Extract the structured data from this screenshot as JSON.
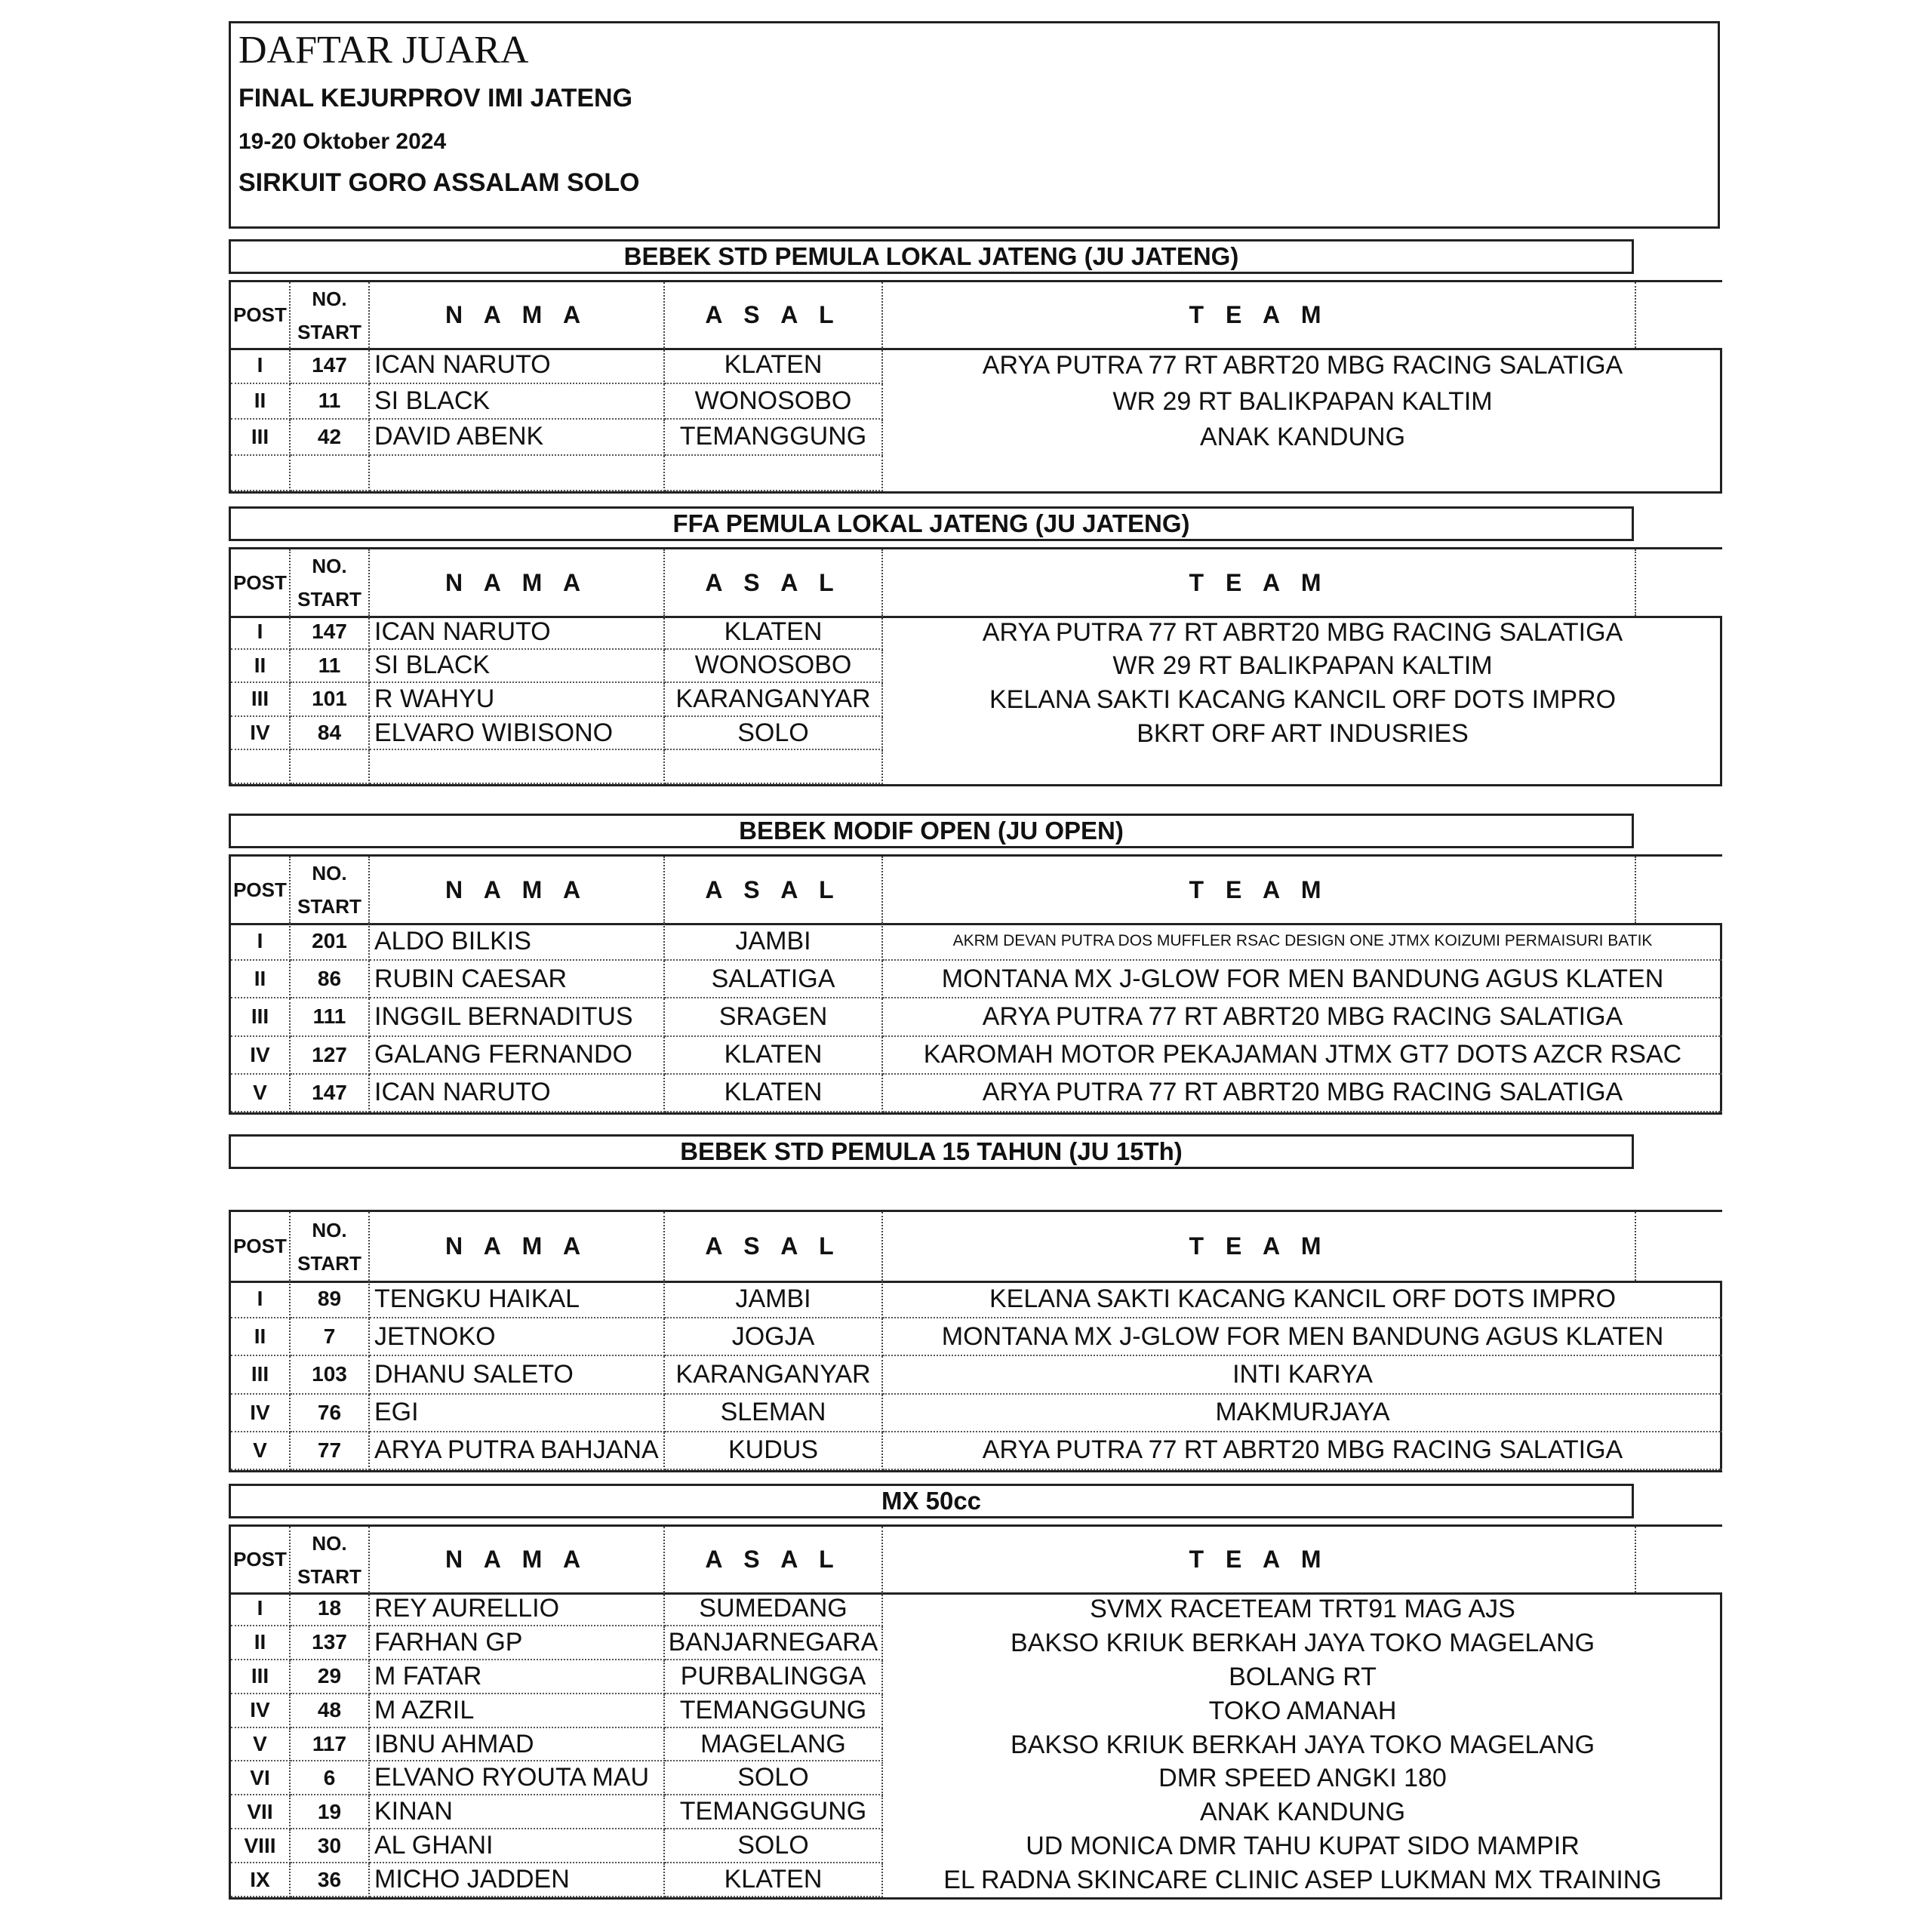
{
  "header": {
    "title": "DAFTAR JUARA",
    "event": "FINAL KEJURPROV IMI JATENG",
    "date": "19-20 Oktober 2024",
    "venue": "SIRKUIT GORO ASSALAM SOLO"
  },
  "columns": {
    "post": "POST",
    "no_start_1": "NO.",
    "no_start_2": "START",
    "nama": "N A M A",
    "asal": "A S A L",
    "team": "T E A M"
  },
  "sections": [
    {
      "title": "BEBEK STD PEMULA LOKAL JATENG (JU JATENG)",
      "rows": [
        {
          "post": "I",
          "no": "147",
          "nama": "ICAN NARUTO",
          "asal": "KLATEN",
          "team": "ARYA PUTRA 77 RT ABRT20 MBG RACING SALATIGA"
        },
        {
          "post": "II",
          "no": "11",
          "nama": "SI BLACK",
          "asal": "WONOSOBO",
          "team": "WR 29 RT BALIKPAPAN KALTIM"
        },
        {
          "post": "III",
          "no": "42",
          "nama": "DAVID ABENK",
          "asal": "TEMANGGUNG",
          "team": "ANAK KANDUNG"
        },
        {
          "post": "",
          "no": "",
          "nama": "",
          "asal": "",
          "team": ""
        }
      ]
    },
    {
      "title": "FFA PEMULA LOKAL JATENG (JU JATENG)",
      "rows": [
        {
          "post": "I",
          "no": "147",
          "nama": "ICAN NARUTO",
          "asal": "KLATEN",
          "team": "ARYA PUTRA 77 RT ABRT20 MBG RACING SALATIGA"
        },
        {
          "post": "II",
          "no": "11",
          "nama": "SI BLACK",
          "asal": "WONOSOBO",
          "team": "WR 29 RT BALIKPAPAN KALTIM"
        },
        {
          "post": "III",
          "no": "101",
          "nama": "R WAHYU",
          "asal": "KARANGANYAR",
          "team": "KELANA SAKTI KACANG KANCIL ORF DOTS IMPRO"
        },
        {
          "post": "IV",
          "no": "84",
          "nama": "ELVARO WIBISONO",
          "asal": "SOLO",
          "team": "BKRT ORF ART INDUSRIES"
        },
        {
          "post": "",
          "no": "",
          "nama": "",
          "asal": "",
          "team": ""
        }
      ]
    },
    {
      "title": "BEBEK MODIF OPEN (JU OPEN)",
      "rows": [
        {
          "post": "I",
          "no": "201",
          "nama": "ALDO BILKIS",
          "asal": "JAMBI",
          "team": "AKRM DEVAN PUTRA DOS MUFFLER RSAC DESIGN ONE JTMX KOIZUMI PERMAISURI BATIK"
        },
        {
          "post": "II",
          "no": "86",
          "nama": "RUBIN CAESAR",
          "asal": "SALATIGA",
          "team": "MONTANA MX J-GLOW FOR MEN BANDUNG AGUS KLATEN"
        },
        {
          "post": "III",
          "no": "111",
          "nama": "INGGIL BERNADITUS",
          "asal": "SRAGEN",
          "team": "ARYA PUTRA 77 RT ABRT20 MBG RACING SALATIGA"
        },
        {
          "post": "IV",
          "no": "127",
          "nama": "GALANG FERNANDO",
          "asal": "KLATEN",
          "team": "KAROMAH MOTOR PEKAJAMAN JTMX GT7 DOTS AZCR RSAC"
        },
        {
          "post": "V",
          "no": "147",
          "nama": "ICAN NARUTO",
          "asal": "KLATEN",
          "team": "ARYA PUTRA 77 RT ABRT20 MBG RACING SALATIGA"
        }
      ]
    },
    {
      "title": "BEBEK STD PEMULA 15 TAHUN (JU 15Th)",
      "rows": [
        {
          "post": "I",
          "no": "89",
          "nama": "TENGKU HAIKAL",
          "asal": "JAMBI",
          "team": "KELANA SAKTI KACANG KANCIL ORF DOTS IMPRO"
        },
        {
          "post": "II",
          "no": "7",
          "nama": "JETNOKO",
          "asal": "JOGJA",
          "team": "MONTANA MX J-GLOW FOR MEN BANDUNG AGUS KLATEN"
        },
        {
          "post": "III",
          "no": "103",
          "nama": "DHANU SALETO",
          "asal": "KARANGANYAR",
          "team": "INTI KARYA"
        },
        {
          "post": "IV",
          "no": "76",
          "nama": "EGI",
          "asal": "SLEMAN",
          "team": "MAKMURJAYA"
        },
        {
          "post": "V",
          "no": "77",
          "nama": "ARYA PUTRA BAHJANA",
          "asal": "KUDUS",
          "team": "ARYA PUTRA 77 RT ABRT20 MBG RACING SALATIGA"
        }
      ]
    },
    {
      "title": "MX 50cc",
      "rows": [
        {
          "post": "I",
          "no": "18",
          "nama": "REY AURELLIO",
          "asal": "SUMEDANG",
          "team": "SVMX RACETEAM TRT91 MAG AJS"
        },
        {
          "post": "II",
          "no": "137",
          "nama": "FARHAN GP",
          "asal": "BANJARNEGARA",
          "team": "BAKSO KRIUK BERKAH JAYA TOKO MAGELANG"
        },
        {
          "post": "III",
          "no": "29",
          "nama": "M FATAR",
          "asal": "PURBALINGGA",
          "team": "BOLANG RT"
        },
        {
          "post": "IV",
          "no": "48",
          "nama": "M AZRIL",
          "asal": "TEMANGGUNG",
          "team": "TOKO AMANAH"
        },
        {
          "post": "V",
          "no": "117",
          "nama": "IBNU AHMAD",
          "asal": "MAGELANG",
          "team": "BAKSO KRIUK BERKAH JAYA TOKO MAGELANG"
        },
        {
          "post": "VI",
          "no": "6",
          "nama": "ELVANO RYOUTA MAU",
          "asal": "SOLO",
          "team": "DMR SPEED ANGKI 180"
        },
        {
          "post": "VII",
          "no": "19",
          "nama": "KINAN",
          "asal": "TEMANGGUNG",
          "team": "ANAK KANDUNG"
        },
        {
          "post": "VIII",
          "no": "30",
          "nama": "AL GHANI",
          "asal": "SOLO",
          "team": "UD MONICA DMR TAHU KUPAT SIDO MAMPIR"
        },
        {
          "post": "IX",
          "no": "36",
          "nama": "MICHO JADDEN",
          "asal": "KLATEN",
          "team": "EL RADNA SKINCARE CLINIC ASEP LUKMAN MX TRAINING"
        }
      ]
    }
  ]
}
